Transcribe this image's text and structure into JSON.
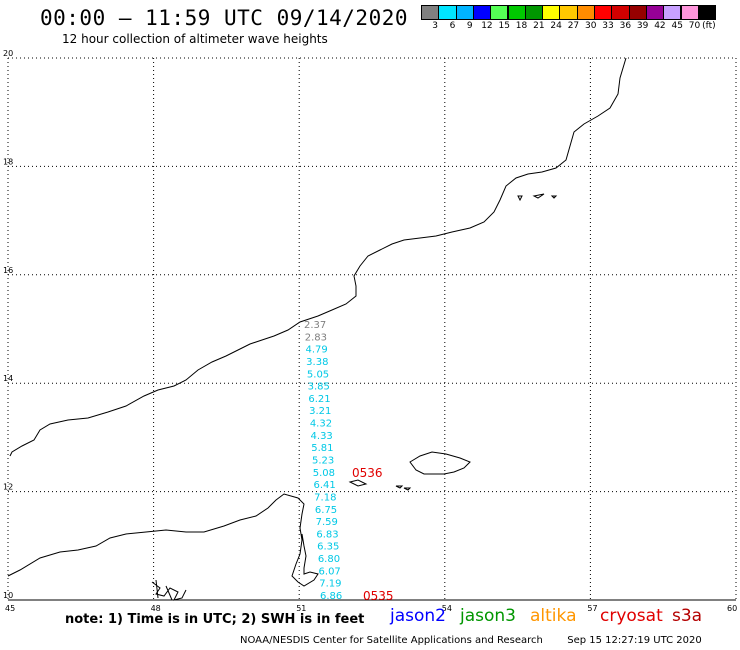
{
  "header": {
    "title": "00:00 – 11:59 UTC 09/14/2020",
    "subtitle": "12 hour collection of altimeter wave heights"
  },
  "colorbar": {
    "unit": "(ft)",
    "bins": [
      {
        "label": "3",
        "color": "#808080"
      },
      {
        "label": "6",
        "color": "#00e5ff"
      },
      {
        "label": "9",
        "color": "#00b4ff"
      },
      {
        "label": "12",
        "color": "#0000ff"
      },
      {
        "label": "15",
        "color": "#55ff55"
      },
      {
        "label": "18",
        "color": "#00c800"
      },
      {
        "label": "21",
        "color": "#009600"
      },
      {
        "label": "24",
        "color": "#ffff00"
      },
      {
        "label": "27",
        "color": "#ffc800"
      },
      {
        "label": "30",
        "color": "#ff8c00"
      },
      {
        "label": "33",
        "color": "#ff0000"
      },
      {
        "label": "36",
        "color": "#d20000"
      },
      {
        "label": "39",
        "color": "#960000"
      },
      {
        "label": "42",
        "color": "#960096"
      },
      {
        "label": "45",
        "color": "#c8a0ff"
      },
      {
        "label": "70",
        "color": "#ff96dc"
      },
      {
        "label": "",
        "color": "#000000"
      }
    ]
  },
  "axes": {
    "lon_labels": [
      "45",
      "48",
      "51",
      "54",
      "57",
      "60"
    ],
    "lat_labels": [
      "20",
      "18",
      "16",
      "14",
      "12",
      "10"
    ]
  },
  "track": {
    "time_labels": [
      {
        "text": "0536",
        "color": "#e00000"
      },
      {
        "text": "0535",
        "color": "#e00000"
      }
    ],
    "wave_heights": [
      {
        "value": "2.37",
        "color": "#808080"
      },
      {
        "value": "2.83",
        "color": "#808080"
      },
      {
        "value": "4.79",
        "color": "#00c8e6"
      },
      {
        "value": "3.38",
        "color": "#00c8e6"
      },
      {
        "value": "5.05",
        "color": "#00c8e6"
      },
      {
        "value": "3.85",
        "color": "#00c8e6"
      },
      {
        "value": "6.21",
        "color": "#00c8e6"
      },
      {
        "value": "3.21",
        "color": "#00c8e6"
      },
      {
        "value": "4.32",
        "color": "#00c8e6"
      },
      {
        "value": "4.33",
        "color": "#00c8e6"
      },
      {
        "value": "5.81",
        "color": "#00c8e6"
      },
      {
        "value": "5.23",
        "color": "#00c8e6"
      },
      {
        "value": "5.08",
        "color": "#00c8e6"
      },
      {
        "value": "6.41",
        "color": "#00c8e6"
      },
      {
        "value": "7.18",
        "color": "#00c8e6"
      },
      {
        "value": "6.75",
        "color": "#00c8e6"
      },
      {
        "value": "7.59",
        "color": "#00c8e6"
      },
      {
        "value": "6.83",
        "color": "#00c8e6"
      },
      {
        "value": "6.35",
        "color": "#00c8e6"
      },
      {
        "value": "6.80",
        "color": "#00c8e6"
      },
      {
        "value": "6.07",
        "color": "#00c8e6"
      },
      {
        "value": "7.19",
        "color": "#00c8e6"
      },
      {
        "value": "6.86",
        "color": "#00c8e6"
      }
    ]
  },
  "footer": {
    "note": "note: 1) Time is in UTC; 2) SWH is in feet",
    "satellites": [
      {
        "name": "jason2",
        "color": "#0000ff"
      },
      {
        "name": "jason3",
        "color": "#009600"
      },
      {
        "name": "altika",
        "color": "#ff9600"
      },
      {
        "name": "cryosat",
        "color": "#e00000"
      },
      {
        "name": "s3a",
        "color": "#b40000"
      }
    ],
    "credit": "NOAA/NESDIS Center for Satellite Applications and Research",
    "timestamp": "Sep 15 12:27:19 UTC 2020"
  }
}
